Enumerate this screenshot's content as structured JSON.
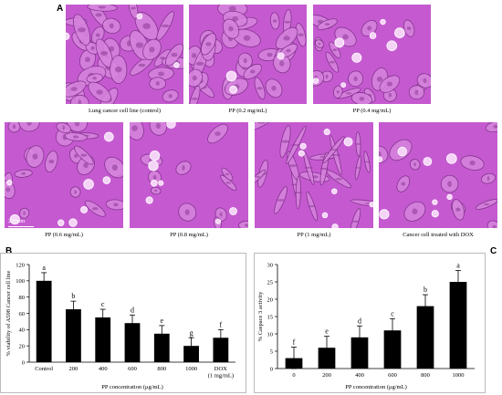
{
  "panel_labels": {
    "a": "A",
    "b": "B",
    "c": "C"
  },
  "colors": {
    "micro_bg": "#c55ad0",
    "micro_cell_fill": "#d785de",
    "micro_cell_edge": "#7a2c86",
    "micro_bright": "#f5d3f7",
    "bar": "#000000"
  },
  "micrographs": [
    {
      "caption": "Lung cancer cell line (control)",
      "density": "high",
      "state": "spread"
    },
    {
      "caption": "PP (0.2 mg/mL)",
      "density": "high",
      "state": "spread"
    },
    {
      "caption": "PP (0.4 mg/mL)",
      "density": "medium",
      "state": "rounding"
    },
    {
      "caption": "PP (0.6 mg/mL)",
      "density": "medium",
      "state": "rounding"
    },
    {
      "caption": "PP (0.8 mg/mL)",
      "density": "low",
      "state": "rounding"
    },
    {
      "caption": "PP (1 mg/mL)",
      "density": "medium",
      "state": "elongated"
    },
    {
      "caption": "Cancer cell treated with DOX",
      "density": "low",
      "state": "rounding"
    }
  ],
  "scale_bar": {
    "label": "200μm"
  },
  "chart_data": [
    {
      "id": "B",
      "type": "bar",
      "ylabel": "% viability of A598 Cancer cell line",
      "xlabel": "PP concentration (μg/mL)",
      "ylim": [
        0,
        120
      ],
      "yticks": [
        0,
        20,
        40,
        60,
        80,
        100,
        120
      ],
      "categories": [
        "Control",
        "200",
        "400",
        "600",
        "800",
        "1000",
        "DOX\n(1 mg/mL)"
      ],
      "values": [
        100,
        65,
        55,
        48,
        35,
        20,
        30
      ],
      "errors": [
        10,
        10,
        10,
        10,
        10,
        10,
        10
      ],
      "letters": [
        "a",
        "b",
        "c",
        "d",
        "e",
        "g",
        "f"
      ]
    },
    {
      "id": "C",
      "type": "bar",
      "ylabel": "% Caspace 3 activity",
      "xlabel": "PP concentration (μg/mL)",
      "ylim": [
        0,
        30
      ],
      "yticks": [
        0,
        5,
        10,
        15,
        20,
        25,
        30
      ],
      "categories": [
        "0",
        "200",
        "400",
        "600",
        "800",
        "1000"
      ],
      "values": [
        3,
        6,
        9,
        11,
        18,
        25
      ],
      "errors": [
        3.2,
        3.3,
        3.3,
        3.4,
        3.3,
        3.3
      ],
      "letters": [
        "f",
        "e",
        "d",
        "c",
        "b",
        "a"
      ]
    }
  ]
}
